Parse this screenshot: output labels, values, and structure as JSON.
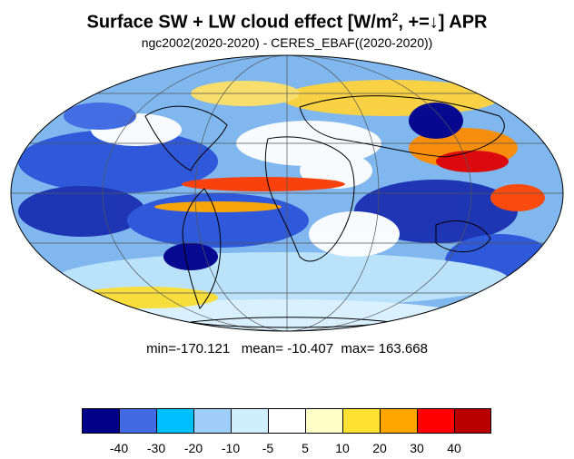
{
  "title": {
    "pre": "Surface SW + LW cloud effect [W/m",
    "sup": "2",
    "post": ", +=↓]  APR"
  },
  "subtitle": "ngc2002(2020-2020) - CERES_EBAF((2020-2020))",
  "stats": {
    "min_label": "min=",
    "min": "-170.121",
    "mean_label": "mean=",
    "mean": "-10.407",
    "max_label": "max=",
    "max": "163.668"
  },
  "colorbar": {
    "colors": [
      "#00008b",
      "#4169e1",
      "#00bfff",
      "#9fcdf9",
      "#cfefff",
      "#ffffff",
      "#ffffc8",
      "#ffe033",
      "#ffa500",
      "#ff0000",
      "#b80000"
    ],
    "labels": [
      "-40",
      "-30",
      "-20",
      "-10",
      "-5",
      "5",
      "10",
      "20",
      "30",
      "40"
    ]
  },
  "map": {
    "projection": "Mollweide",
    "land_outline_color": "#000000",
    "grid_color": "#555555"
  }
}
